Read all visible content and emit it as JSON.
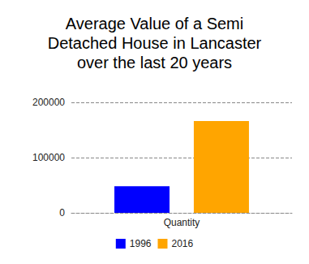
{
  "chart_data": {
    "type": "bar",
    "title": "Average Value of a Semi\nDetached House in Lancaster\nover the last 20 years",
    "categories": [
      "Quantity"
    ],
    "series": [
      {
        "name": "1996",
        "color": "#0000ff",
        "values": [
          48000
        ]
      },
      {
        "name": "2016",
        "color": "#ffa500",
        "values": [
          166000
        ]
      }
    ],
    "ylim": [
      0,
      200000
    ],
    "yticks": [
      0,
      100000,
      200000
    ],
    "grid": true,
    "legend": "bottom"
  }
}
